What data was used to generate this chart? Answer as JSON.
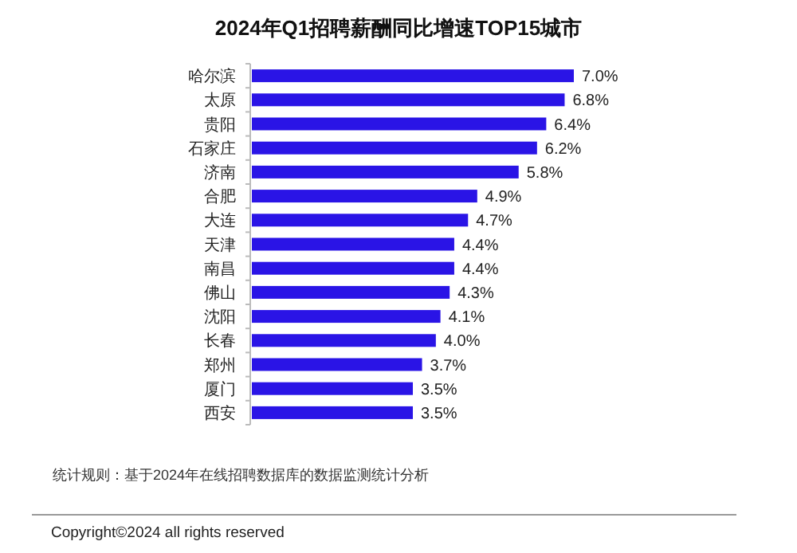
{
  "chart_data": {
    "type": "bar",
    "orientation": "horizontal",
    "title": "2024年Q1招聘薪酬同比增速TOP15城市",
    "categories": [
      "哈尔滨",
      "太原",
      "贵阳",
      "石家庄",
      "济南",
      "合肥",
      "大连",
      "天津",
      "南昌",
      "佛山",
      "沈阳",
      "长春",
      "郑州",
      "厦门",
      "西安"
    ],
    "values": [
      7.0,
      6.8,
      6.4,
      6.2,
      5.8,
      4.9,
      4.7,
      4.4,
      4.4,
      4.3,
      4.1,
      4.0,
      3.7,
      3.5,
      3.5
    ],
    "value_labels": [
      "7.0%",
      "6.8%",
      "6.4%",
      "6.2%",
      "5.8%",
      "4.9%",
      "4.7%",
      "4.4%",
      "4.4%",
      "4.3%",
      "4.1%",
      "4.0%",
      "3.7%",
      "3.5%",
      "3.5%"
    ],
    "color": "#2a14e6",
    "annotations": [
      "统计规则：基于2024年在线招聘数据库的数据监测统计分析",
      "Copyright©2024 all rights reserved"
    ]
  }
}
